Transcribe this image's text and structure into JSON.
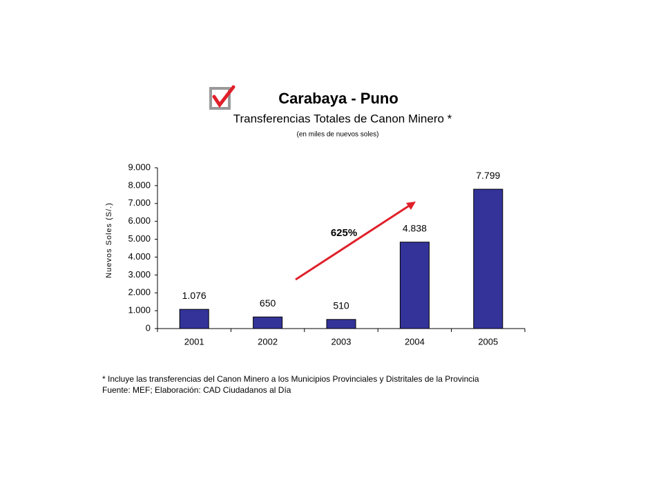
{
  "chart_data": {
    "type": "bar",
    "title": "Carabaya - Puno",
    "subtitle": "Transferencias Totales de Canon Minero *",
    "subtitle2": "(en miles de nuevos soles)",
    "y_label": "Nuevos Soles (S/.)",
    "annotation": "625%",
    "categories": [
      "2001",
      "2002",
      "2003",
      "2004",
      "2005"
    ],
    "values": [
      1076,
      650,
      510,
      4838,
      7799
    ],
    "value_labels": [
      "1.076",
      "650",
      "510",
      "4.838",
      "7.799"
    ],
    "color": "#333399",
    "ylim": [
      0,
      9000
    ],
    "yticks": [
      0,
      {
        "value": 1000,
        "label": "1.000"
      },
      {
        "value": 2000,
        "label": "2.000"
      },
      {
        "value": 3000,
        "label": "3.000"
      },
      {
        "value": 4000,
        "label": "4.000"
      },
      {
        "value": 5000,
        "label": "5.000"
      },
      {
        "value": 6000,
        "label": "6.000"
      },
      {
        "value": 7000,
        "label": "7.000"
      },
      {
        "value": 8000,
        "label": "8.000"
      },
      {
        "value": 9000,
        "label": "9.000"
      }
    ],
    "grid": false,
    "footnotes": [
      "* Incluye las transferencias del Canon Minero a los Municipios Provinciales y Distritales de la Provincia",
      "Fuente: MEF; Elaboración: CAD Ciudadanos al Día"
    ]
  }
}
